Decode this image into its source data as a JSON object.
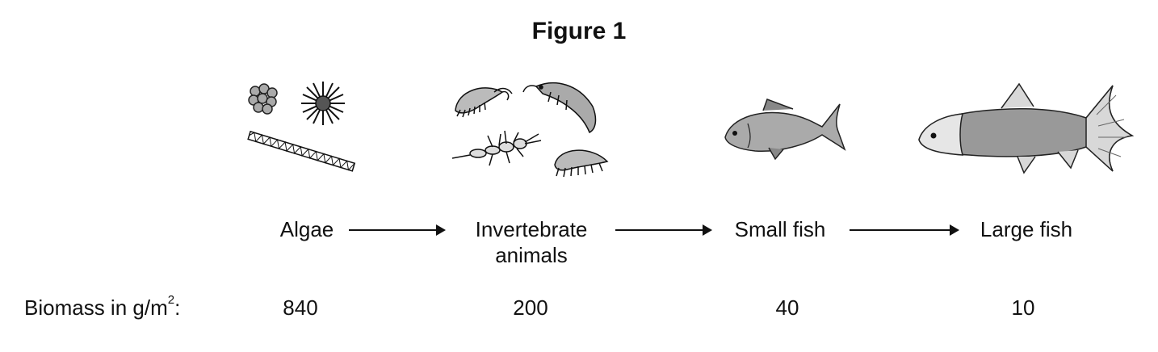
{
  "figure": {
    "title": "Figure 1"
  },
  "food_chain": [
    {
      "label_line1": "Algae",
      "label_line2": "",
      "biomass": "840",
      "icon": "algae-icon"
    },
    {
      "label_line1": "Invertebrate",
      "label_line2": "animals",
      "biomass": "200",
      "icon": "invertebrates-icon"
    },
    {
      "label_line1": "Small fish",
      "label_line2": "",
      "biomass": "40",
      "icon": "small-fish-icon"
    },
    {
      "label_line1": "Large fish",
      "label_line2": "",
      "biomass": "10",
      "icon": "large-fish-icon"
    }
  ],
  "biomass": {
    "label_prefix": "Biomass in g/m",
    "label_exponent": "2",
    "label_suffix": ":"
  }
}
